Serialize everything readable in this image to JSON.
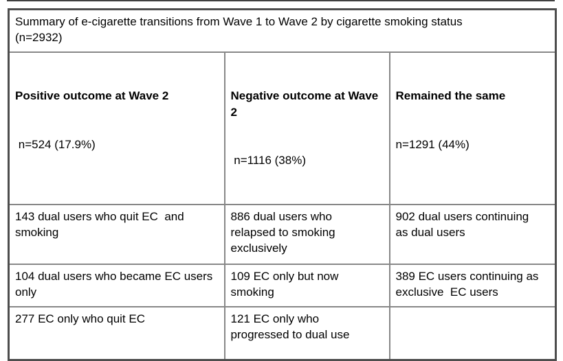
{
  "colors": {
    "background": "#ffffff",
    "text": "#000000",
    "outer_border": "#4d4d4d",
    "inner_border": "#878787",
    "top_rule": "#3f3f3f"
  },
  "table": {
    "caption": "Summary of e-cigarette transitions from Wave 1 to Wave 2 by cigarette smoking status\n(n=2932)",
    "headers": [
      {
        "title": "Positive outcome at Wave 2",
        "subtitle": " n=524 (17.9%)"
      },
      {
        "title": "Negative outcome at Wave\n2",
        "subtitle": " n=1116 (38%)"
      },
      {
        "title": "Remained the same",
        "subtitle": "n=1291 (44%)"
      }
    ],
    "rows": [
      {
        "cells": [
          "143 dual users who quit EC  and\nsmoking",
          "886 dual users who\nrelapsed to smoking\nexclusively",
          "902 dual users continuing\nas dual users"
        ]
      },
      {
        "cells": [
          "104 dual users who became EC users\nonly",
          "109 EC only but now\nsmoking",
          "389 EC users continuing as\nexclusive  EC users"
        ]
      },
      {
        "cells": [
          "277 EC only who quit EC",
          "121 EC only who\nprogressed to dual use",
          ""
        ]
      }
    ]
  }
}
